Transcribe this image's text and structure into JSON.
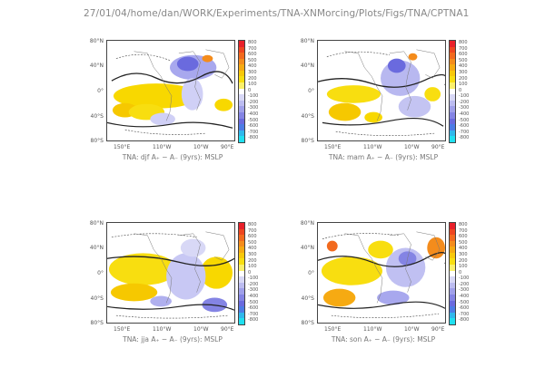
{
  "header": {
    "path": "27/01/04/home/dan/WORK/Experiments/TNA-XNMorcing/Plots/Figs/TNA/CPTNA1"
  },
  "axes": {
    "y_ticks": [
      "80°N",
      "40°N",
      "0°",
      "40°S",
      "80°S"
    ],
    "x_ticks": [
      "150°E",
      "110°W",
      "10°W",
      "90°E"
    ]
  },
  "colorbar": {
    "levels": [
      "800",
      "700",
      "600",
      "500",
      "400",
      "300",
      "200",
      "100",
      "0",
      "-100",
      "-200",
      "-300",
      "-400",
      "-500",
      "-600",
      "-700",
      "-800"
    ],
    "colors": [
      "#e8202a",
      "#ee4620",
      "#f26a1e",
      "#f48c1c",
      "#f6aa12",
      "#f8c80a",
      "#f8de10",
      "#fbef6a",
      "#ffffff",
      "#d8d8f6",
      "#bcbcf0",
      "#a0a0ea",
      "#8484e4",
      "#6a6ade",
      "#4c7ce6",
      "#30b8ec",
      "#20e0f0"
    ]
  },
  "panels": [
    {
      "id": "djf",
      "caption": "TNA: djf A₊ − A₋ (9yrs): MSLP"
    },
    {
      "id": "mam",
      "caption": "TNA: mam A₊ − A₋ (9yrs): MSLP"
    },
    {
      "id": "jja",
      "caption": "TNA: jja A₊ − A₋ (9yrs): MSLP"
    },
    {
      "id": "son",
      "caption": "TNA: son A₊ − A₋ (9yrs): MSLP"
    }
  ],
  "chart_data": [
    {
      "type": "heatmap",
      "title": "TNA: djf A₊ − A₋ (9yrs): MSLP",
      "field": "MSLP anomaly (A₊ − A₋)",
      "colorbar_range": [
        -800,
        800
      ],
      "contour_interval": 100,
      "x_ticks": [
        "150°E",
        "110°W",
        "10°W",
        "90°E"
      ],
      "y_ticks": [
        "80°N",
        "40°N",
        "0°",
        "40°S",
        "80°S"
      ]
    },
    {
      "type": "heatmap",
      "title": "TNA: mam A₊ − A₋ (9yrs): MSLP",
      "field": "MSLP anomaly (A₊ − A₋)",
      "colorbar_range": [
        -800,
        800
      ],
      "contour_interval": 100,
      "x_ticks": [
        "150°E",
        "110°W",
        "10°W",
        "90°E"
      ],
      "y_ticks": [
        "80°N",
        "40°N",
        "0°",
        "40°S",
        "80°S"
      ]
    },
    {
      "type": "heatmap",
      "title": "TNA: jja A₊ − A₋ (9yrs): MSLP",
      "field": "MSLP anomaly (A₊ − A₋)",
      "colorbar_range": [
        -800,
        800
      ],
      "contour_interval": 100,
      "x_ticks": [
        "150°E",
        "110°W",
        "10°W",
        "90°E"
      ],
      "y_ticks": [
        "80°N",
        "40°N",
        "0°",
        "40°S",
        "80°S"
      ]
    },
    {
      "type": "heatmap",
      "title": "TNA: son A₊ − A₋ (9yrs): MSLP",
      "field": "MSLP anomaly (A₊ − A₋)",
      "colorbar_range": [
        -800,
        800
      ],
      "contour_interval": 100,
      "x_ticks": [
        "150°E",
        "110°W",
        "10°W",
        "90°E"
      ],
      "y_ticks": [
        "80°N",
        "40°N",
        "0°",
        "40°S",
        "80°S"
      ]
    }
  ]
}
